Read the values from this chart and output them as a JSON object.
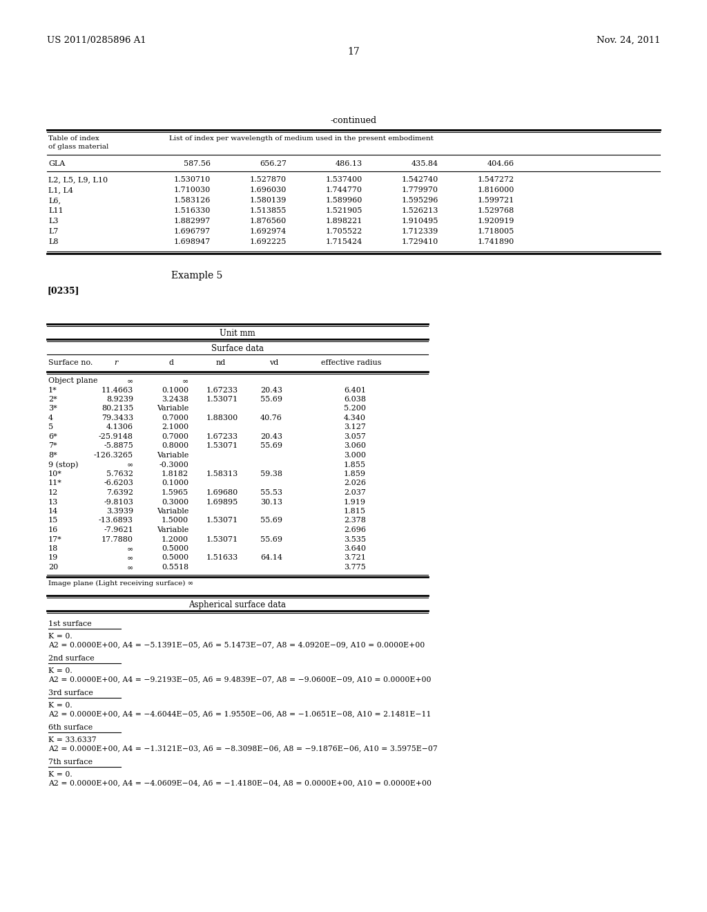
{
  "header_left": "US 2011/0285896 A1",
  "header_right": "Nov. 24, 2011",
  "page_number": "17",
  "continued_label": "-continued",
  "table1_title_col1": "Table of index\nof glass material",
  "table1_title_col2": "List of index per wavelength of medium used in the present embodiment",
  "table1_headers": [
    "GLA",
    "587.56",
    "656.27",
    "486.13",
    "435.84",
    "404.66"
  ],
  "table1_rows": [
    [
      "L2, L5, L9, L10",
      "1.530710",
      "1.527870",
      "1.537400",
      "1.542740",
      "1.547272"
    ],
    [
      "L1, L4",
      "1.710030",
      "1.696030",
      "1.744770",
      "1.779970",
      "1.816000"
    ],
    [
      "L6,",
      "1.583126",
      "1.580139",
      "1.589960",
      "1.595296",
      "1.599721"
    ],
    [
      "L11",
      "1.516330",
      "1.513855",
      "1.521905",
      "1.526213",
      "1.529768"
    ],
    [
      "L3",
      "1.882997",
      "1.876560",
      "1.898221",
      "1.910495",
      "1.920919"
    ],
    [
      "L7",
      "1.696797",
      "1.692974",
      "1.705522",
      "1.712339",
      "1.718005"
    ],
    [
      "L8",
      "1.698947",
      "1.692225",
      "1.715424",
      "1.729410",
      "1.741890"
    ]
  ],
  "example_label": "Example 5",
  "paragraph_label": "[0235]",
  "unit_label": "Unit mm",
  "surface_data_label": "Surface data",
  "surface_headers": [
    "Surface no.",
    "r",
    "d",
    "nd",
    "vd",
    "effective radius"
  ],
  "surface_rows": [
    [
      "Object plane",
      "∞",
      "∞",
      "",
      "",
      ""
    ],
    [
      "1*",
      "11.4663",
      "0.1000",
      "1.67233",
      "20.43",
      "6.401"
    ],
    [
      "2*",
      "8.9239",
      "3.2438",
      "1.53071",
      "55.69",
      "6.038"
    ],
    [
      "3*",
      "80.2135",
      "Variable",
      "",
      "",
      "5.200"
    ],
    [
      "4",
      "79.3433",
      "0.7000",
      "1.88300",
      "40.76",
      "4.340"
    ],
    [
      "5",
      "4.1306",
      "2.1000",
      "",
      "",
      "3.127"
    ],
    [
      "6*",
      "-25.9148",
      "0.7000",
      "1.67233",
      "20.43",
      "3.057"
    ],
    [
      "7*",
      "-5.8875",
      "0.8000",
      "1.53071",
      "55.69",
      "3.060"
    ],
    [
      "8*",
      "-126.3265",
      "Variable",
      "",
      "",
      "3.000"
    ],
    [
      "9 (stop)",
      "∞",
      "-0.3000",
      "",
      "",
      "1.855"
    ],
    [
      "10*",
      "5.7632",
      "1.8182",
      "1.58313",
      "59.38",
      "1.859"
    ],
    [
      "11*",
      "-6.6203",
      "0.1000",
      "",
      "",
      "2.026"
    ],
    [
      "12",
      "7.6392",
      "1.5965",
      "1.69680",
      "55.53",
      "2.037"
    ],
    [
      "13",
      "-9.8103",
      "0.3000",
      "1.69895",
      "30.13",
      "1.919"
    ],
    [
      "14",
      "3.3939",
      "Variable",
      "",
      "",
      "1.815"
    ],
    [
      "15",
      "-13.6893",
      "1.5000",
      "1.53071",
      "55.69",
      "2.378"
    ],
    [
      "16",
      "-7.9621",
      "Variable",
      "",
      "",
      "2.696"
    ],
    [
      "17*",
      "17.7880",
      "1.2000",
      "1.53071",
      "55.69",
      "3.535"
    ],
    [
      "18",
      "∞",
      "0.5000",
      "",
      "",
      "3.640"
    ],
    [
      "19",
      "∞",
      "0.5000",
      "1.51633",
      "64.14",
      "3.721"
    ],
    [
      "20",
      "∞",
      "0.5518",
      "",
      "",
      "3.775"
    ]
  ],
  "image_plane_label": "Image plane (Light receiving surface) ∞",
  "aspherical_label": "Aspherical surface data",
  "surface_sections": [
    {
      "name": "1st surface",
      "lines": [
        "K = 0.",
        "A2 = 0.0000E+00, A4 = −5.1391E−05, A6 = 5.1473E−07, A8 = 4.0920E−09, A10 = 0.0000E+00"
      ]
    },
    {
      "name": "2nd surface",
      "lines": [
        "K = 0.",
        "A2 = 0.0000E+00, A4 = −9.2193E−05, A6 = 9.4839E−07, A8 = −9.0600E−09, A10 = 0.0000E+00"
      ]
    },
    {
      "name": "3rd surface",
      "lines": [
        "K = 0.",
        "A2 = 0.0000E+00, A4 = −4.6044E−05, A6 = 1.9550E−06, A8 = −1.0651E−08, A10 = 2.1481E−11"
      ]
    },
    {
      "name": "6th surface",
      "lines": [
        "K = 33.6337",
        "A2 = 0.0000E+00, A4 = −1.3121E−03, A6 = −8.3098E−06, A8 = −9.1876E−06, A10 = 3.5975E−07"
      ]
    },
    {
      "name": "7th surface",
      "lines": [
        "K = 0.",
        "A2 = 0.0000E+00, A4 = −4.0609E−04, A6 = −1.4180E−04, A8 = 0.0000E+00, A10 = 0.0000E+00"
      ]
    }
  ]
}
